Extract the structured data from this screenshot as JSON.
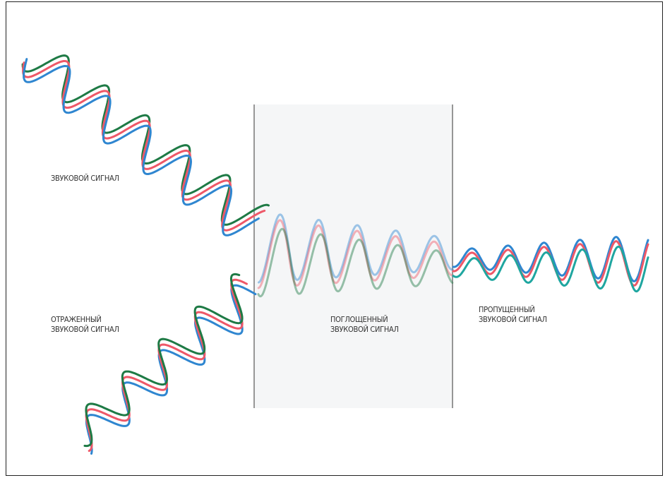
{
  "labels": {
    "incident": "ЗВУКОВОЙ СИГНАЛ",
    "reflected": "ОТРАЖЕННЫЙ\nЗВУКОВОЙ СИГНАЛ",
    "absorbed": "ПОГЛОЩЕННЫЙ\nЗВУКОВОЙ СИГНАЛ",
    "transmitted": "ПРОПУЩЕННЫЙ\nЗВУКОВОЙ СИГНАЛ"
  },
  "colors": {
    "blue": "#2f86d0",
    "red": "#ee5868",
    "green": "#1e7a45",
    "teal": "#1fa6a0",
    "barrier_fill": "#f5f6f7",
    "barrier_edge": "#777777"
  }
}
